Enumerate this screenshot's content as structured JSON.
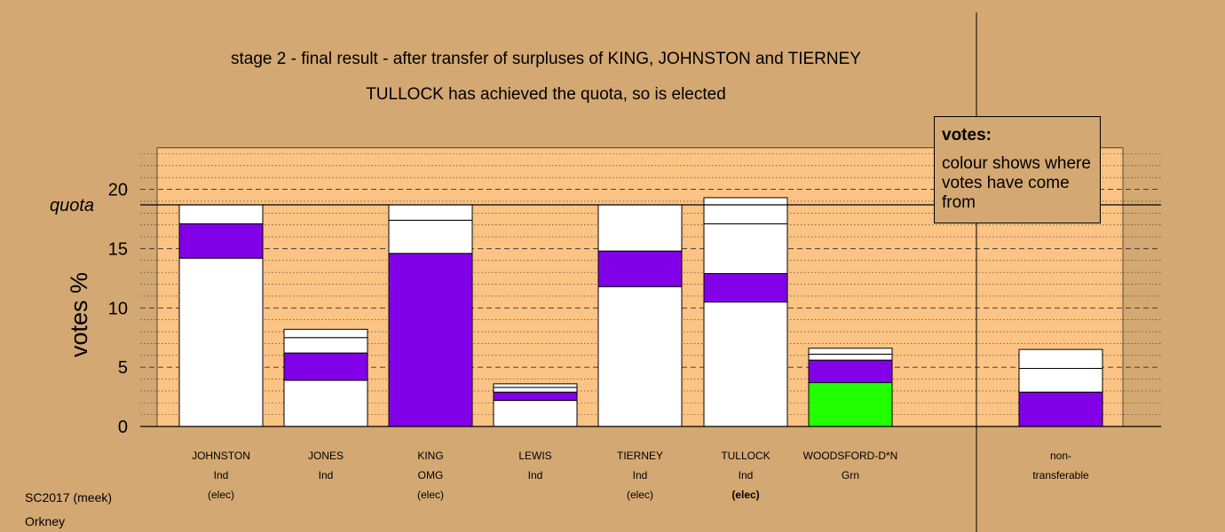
{
  "title_line1": "stage 2 - final result - after transfer of surpluses of KING, JOHNSTON and TIERNEY",
  "title_line2": "TULLOCK has achieved the quota, so is elected",
  "footer_line1": "SC2017 (meek)",
  "footer_line2": "Orkney",
  "legend": {
    "title": "votes:",
    "text": "colour shows where votes have come from"
  },
  "colors": {
    "background": "#d4a872",
    "plot_area": "#fbc384",
    "white": "#ffffff",
    "purple": "#8200e8",
    "green": "#22ff00"
  },
  "chart_data": {
    "type": "bar",
    "ylabel": "votes %",
    "ylim": [
      0,
      23.5
    ],
    "yticks": [
      0,
      5,
      10,
      15,
      20
    ],
    "quota_label": "quota",
    "quota": 18.7,
    "grid": "horizontal dashed every 5, dotted every 1",
    "bars": [
      {
        "label": [
          "JOHNSTON",
          "Ind",
          "(elec)"
        ],
        "bold_line": false,
        "segments": [
          {
            "value": 14.2,
            "color": "white"
          },
          {
            "value": 2.9,
            "color": "purple"
          },
          {
            "value": 1.6,
            "color": "white"
          }
        ]
      },
      {
        "label": [
          "JONES",
          "Ind"
        ],
        "bold_line": false,
        "segments": [
          {
            "value": 3.9,
            "color": "white"
          },
          {
            "value": 2.3,
            "color": "purple"
          },
          {
            "value": 1.3,
            "color": "white"
          },
          {
            "value": 0.7,
            "color": "white"
          }
        ]
      },
      {
        "label": [
          "KING",
          "OMG",
          "(elec)"
        ],
        "bold_line": false,
        "segments": [
          {
            "value": 14.6,
            "color": "purple"
          },
          {
            "value": 2.8,
            "color": "white"
          },
          {
            "value": 1.3,
            "color": "white"
          }
        ]
      },
      {
        "label": [
          "LEWIS",
          "Ind"
        ],
        "bold_line": false,
        "segments": [
          {
            "value": 2.2,
            "color": "white"
          },
          {
            "value": 0.7,
            "color": "purple"
          },
          {
            "value": 0.4,
            "color": "white"
          },
          {
            "value": 0.3,
            "color": "white"
          }
        ]
      },
      {
        "label": [
          "TIERNEY",
          "Ind",
          "(elec)"
        ],
        "bold_line": false,
        "segments": [
          {
            "value": 11.8,
            "color": "white"
          },
          {
            "value": 3.0,
            "color": "purple"
          },
          {
            "value": 3.9,
            "color": "white"
          }
        ]
      },
      {
        "label": [
          "TULLOCK",
          "Ind",
          "(elec)"
        ],
        "bold_line": true,
        "segments": [
          {
            "value": 10.5,
            "color": "white"
          },
          {
            "value": 2.4,
            "color": "purple"
          },
          {
            "value": 4.2,
            "color": "white"
          },
          {
            "value": 2.2,
            "color": "white"
          }
        ]
      },
      {
        "label": [
          "WOODSFORD-D*N",
          "Grn"
        ],
        "bold_line": false,
        "segments": [
          {
            "value": 3.7,
            "color": "green"
          },
          {
            "value": 1.9,
            "color": "purple"
          },
          {
            "value": 0.5,
            "color": "white"
          },
          {
            "value": 0.5,
            "color": "white"
          }
        ]
      },
      {
        "label": [
          "non-",
          "transferable"
        ],
        "bold_line": false,
        "separate": true,
        "segments": [
          {
            "value": 2.9,
            "color": "purple"
          },
          {
            "value": 2.0,
            "color": "white"
          },
          {
            "value": 1.6,
            "color": "white"
          }
        ]
      }
    ]
  }
}
